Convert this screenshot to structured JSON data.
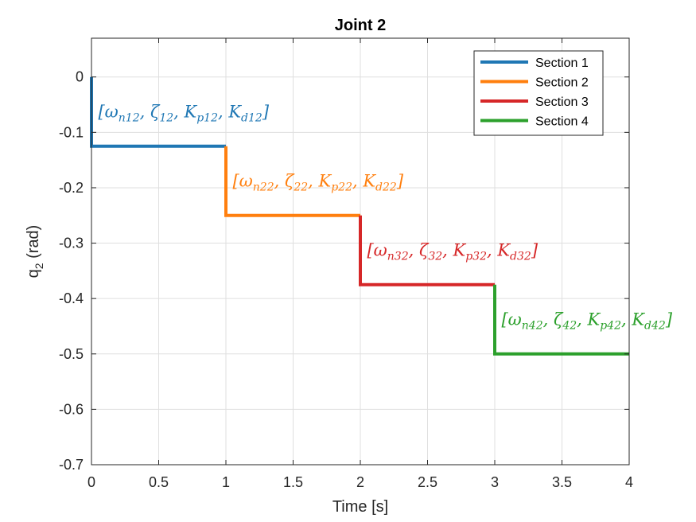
{
  "chart_data": {
    "type": "line",
    "title": "Joint 2",
    "xlabel": "Time [s]",
    "ylabel": {
      "base": "q",
      "sub": "2",
      "rest": " (rad)"
    },
    "xlim": [
      0,
      4
    ],
    "ylim": [
      -0.7,
      0.07
    ],
    "xticks": [
      "0",
      "0.5",
      "1",
      "1.5",
      "2",
      "2.5",
      "3",
      "3.5",
      "4"
    ],
    "xtick_values": [
      0,
      0.5,
      1,
      1.5,
      2,
      2.5,
      3,
      3.5,
      4
    ],
    "yticks": [
      "0",
      "-0.1",
      "-0.2",
      "-0.3",
      "-0.4",
      "-0.5",
      "-0.6",
      "-0.7"
    ],
    "ytick_values": [
      0,
      -0.1,
      -0.2,
      -0.3,
      -0.4,
      -0.5,
      -0.6,
      -0.7
    ],
    "grid": true,
    "legend_position": "top-right",
    "series": [
      {
        "name": "Section 1",
        "color": "#1f77b4",
        "x": [
          0,
          0,
          1
        ],
        "y": [
          0,
          -0.125,
          -0.125
        ]
      },
      {
        "name": "Section 2",
        "color": "#ff7f0e",
        "x": [
          1,
          1,
          2
        ],
        "y": [
          -0.125,
          -0.25,
          -0.25
        ]
      },
      {
        "name": "Section 3",
        "color": "#d62728",
        "x": [
          2,
          2,
          3
        ],
        "y": [
          -0.25,
          -0.375,
          -0.375
        ]
      },
      {
        "name": "Section 4",
        "color": "#2ca02c",
        "x": [
          3,
          3,
          4
        ],
        "y": [
          -0.375,
          -0.5,
          -0.5
        ]
      }
    ],
    "annotations": [
      {
        "x": 0.05,
        "y": -0.063,
        "color": "#1f77b4",
        "parts": [
          [
            "[ω",
            ""
          ],
          [
            "n12",
            "sub"
          ],
          [
            ", ζ",
            ""
          ],
          [
            "12",
            "sub"
          ],
          [
            ", K",
            ""
          ],
          [
            "p12",
            "sub"
          ],
          [
            ", K",
            ""
          ],
          [
            "d12",
            "sub"
          ],
          [
            "]",
            ""
          ]
        ]
      },
      {
        "x": 1.05,
        "y": -0.188,
        "color": "#ff7f0e",
        "parts": [
          [
            "[ω",
            ""
          ],
          [
            "n22",
            "sub"
          ],
          [
            ", ζ",
            ""
          ],
          [
            "22",
            "sub"
          ],
          [
            ", K",
            ""
          ],
          [
            "p22",
            "sub"
          ],
          [
            ", K",
            ""
          ],
          [
            "d22",
            "sub"
          ],
          [
            "]",
            ""
          ]
        ]
      },
      {
        "x": 2.05,
        "y": -0.313,
        "color": "#d62728",
        "parts": [
          [
            "[ω",
            ""
          ],
          [
            "n32",
            "sub"
          ],
          [
            ", ζ",
            ""
          ],
          [
            "32",
            "sub"
          ],
          [
            ", K",
            ""
          ],
          [
            "p32",
            "sub"
          ],
          [
            ", K",
            ""
          ],
          [
            "d32",
            "sub"
          ],
          [
            "]",
            ""
          ]
        ]
      },
      {
        "x": 3.05,
        "y": -0.438,
        "color": "#2ca02c",
        "parts": [
          [
            "[ω",
            ""
          ],
          [
            "n42",
            "sub"
          ],
          [
            ", ζ",
            ""
          ],
          [
            "42",
            "sub"
          ],
          [
            ", K",
            ""
          ],
          [
            "p42",
            "sub"
          ],
          [
            ", K",
            ""
          ],
          [
            "d42",
            "sub"
          ],
          [
            "]",
            ""
          ]
        ]
      }
    ]
  }
}
